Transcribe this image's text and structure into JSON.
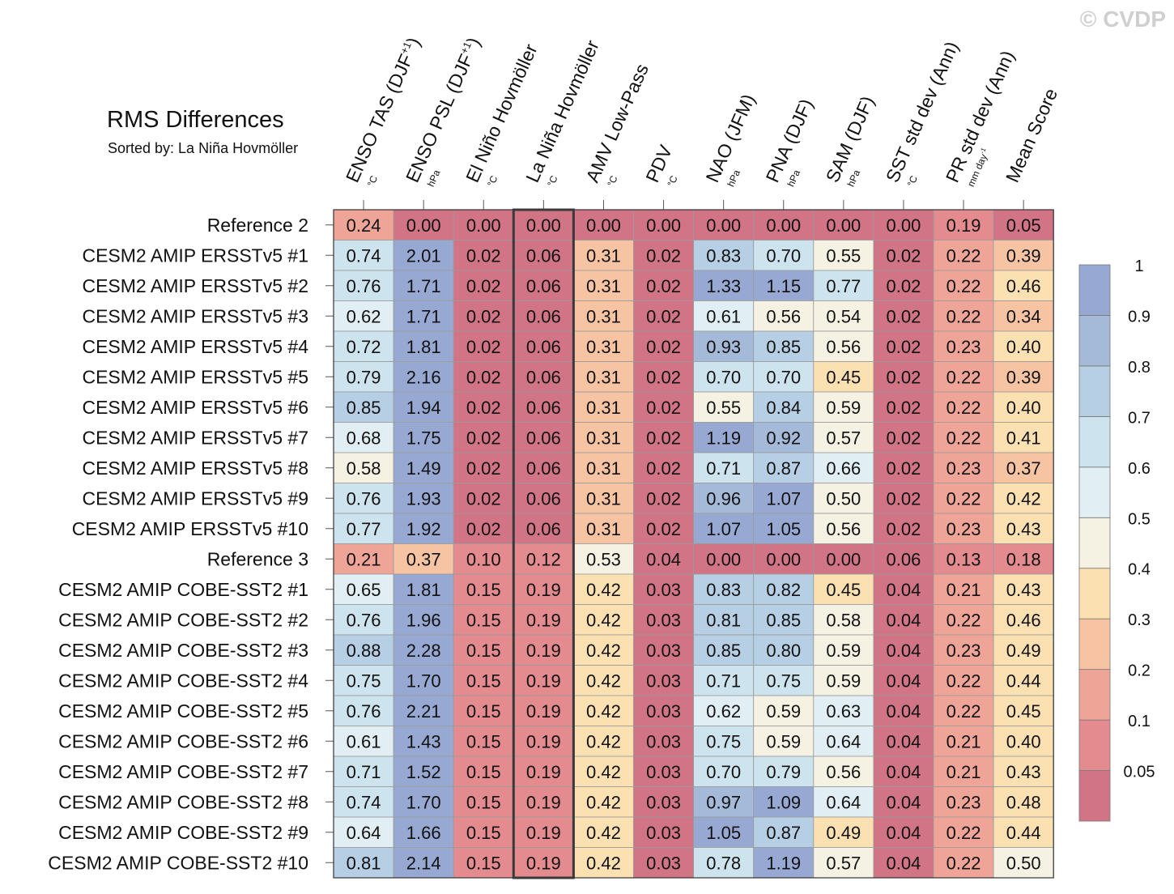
{
  "watermark": "© CVDP",
  "chart_data": {
    "type": "heatmap",
    "title": "RMS Differences",
    "subtitle": "Sorted by: La Niña Hovmöller",
    "sorted_column": "La Niña Hovmöller",
    "columns": [
      {
        "label": "ENSO TAS (DJF",
        "sup": "+1",
        "label_end": ")",
        "unit": "°C"
      },
      {
        "label": "ENSO PSL (DJF",
        "sup": "+1",
        "label_end": ")",
        "unit": "hPa"
      },
      {
        "label": "El Niño Hovmöller",
        "unit": "°C"
      },
      {
        "label": "La Niña Hovmöller",
        "unit": "°C"
      },
      {
        "label": "AMV Low-Pass",
        "unit": "°C"
      },
      {
        "label": "PDV",
        "unit": "°C"
      },
      {
        "label": "NAO (JFM)",
        "unit": "hPa"
      },
      {
        "label": "PNA (DJF)",
        "unit": "hPa"
      },
      {
        "label": "SAM (DJF)",
        "unit": "hPa"
      },
      {
        "label": "SST std dev (Ann)",
        "unit": "°C"
      },
      {
        "label": "PR std dev (Ann)",
        "unit": "mm day",
        "unit_sup": "-1"
      },
      {
        "label": "Mean Score",
        "unit": ""
      }
    ],
    "rows": [
      "Reference 2",
      "CESM2 AMIP ERSSTv5 #1",
      "CESM2 AMIP ERSSTv5 #2",
      "CESM2 AMIP ERSSTv5 #3",
      "CESM2 AMIP ERSSTv5 #4",
      "CESM2 AMIP ERSSTv5 #5",
      "CESM2 AMIP ERSSTv5 #6",
      "CESM2 AMIP ERSSTv5 #7",
      "CESM2 AMIP ERSSTv5 #8",
      "CESM2 AMIP ERSSTv5 #9",
      "CESM2 AMIP ERSSTv5 #10",
      "Reference 3",
      "CESM2 AMIP COBE-SST2 #1",
      "CESM2 AMIP COBE-SST2 #2",
      "CESM2 AMIP COBE-SST2 #3",
      "CESM2 AMIP COBE-SST2 #4",
      "CESM2 AMIP COBE-SST2 #5",
      "CESM2 AMIP COBE-SST2 #6",
      "CESM2 AMIP COBE-SST2 #7",
      "CESM2 AMIP COBE-SST2 #8",
      "CESM2 AMIP COBE-SST2 #9",
      "CESM2 AMIP COBE-SST2 #10"
    ],
    "values": [
      [
        "0.24",
        "0.00",
        "0.00",
        "0.00",
        "0.00",
        "0.00",
        "0.00",
        "0.00",
        "0.00",
        "0.00",
        "0.19",
        "0.05"
      ],
      [
        "0.74",
        "2.01",
        "0.02",
        "0.06",
        "0.31",
        "0.02",
        "0.83",
        "0.70",
        "0.55",
        "0.02",
        "0.22",
        "0.39"
      ],
      [
        "0.76",
        "1.71",
        "0.02",
        "0.06",
        "0.31",
        "0.02",
        "1.33",
        "1.15",
        "0.77",
        "0.02",
        "0.22",
        "0.46"
      ],
      [
        "0.62",
        "1.71",
        "0.02",
        "0.06",
        "0.31",
        "0.02",
        "0.61",
        "0.56",
        "0.54",
        "0.02",
        "0.22",
        "0.34"
      ],
      [
        "0.72",
        "1.81",
        "0.02",
        "0.06",
        "0.31",
        "0.02",
        "0.93",
        "0.85",
        "0.56",
        "0.02",
        "0.23",
        "0.40"
      ],
      [
        "0.79",
        "2.16",
        "0.02",
        "0.06",
        "0.31",
        "0.02",
        "0.70",
        "0.70",
        "0.45",
        "0.02",
        "0.22",
        "0.39"
      ],
      [
        "0.85",
        "1.94",
        "0.02",
        "0.06",
        "0.31",
        "0.02",
        "0.55",
        "0.84",
        "0.59",
        "0.02",
        "0.22",
        "0.40"
      ],
      [
        "0.68",
        "1.75",
        "0.02",
        "0.06",
        "0.31",
        "0.02",
        "1.19",
        "0.92",
        "0.57",
        "0.02",
        "0.22",
        "0.41"
      ],
      [
        "0.58",
        "1.49",
        "0.02",
        "0.06",
        "0.31",
        "0.02",
        "0.71",
        "0.87",
        "0.66",
        "0.02",
        "0.23",
        "0.37"
      ],
      [
        "0.76",
        "1.93",
        "0.02",
        "0.06",
        "0.31",
        "0.02",
        "0.96",
        "1.07",
        "0.50",
        "0.02",
        "0.22",
        "0.42"
      ],
      [
        "0.77",
        "1.92",
        "0.02",
        "0.06",
        "0.31",
        "0.02",
        "1.07",
        "1.05",
        "0.56",
        "0.02",
        "0.23",
        "0.43"
      ],
      [
        "0.21",
        "0.37",
        "0.10",
        "0.12",
        "0.53",
        "0.04",
        "0.00",
        "0.00",
        "0.00",
        "0.06",
        "0.13",
        "0.18"
      ],
      [
        "0.65",
        "1.81",
        "0.15",
        "0.19",
        "0.42",
        "0.03",
        "0.83",
        "0.82",
        "0.45",
        "0.04",
        "0.21",
        "0.43"
      ],
      [
        "0.76",
        "1.96",
        "0.15",
        "0.19",
        "0.42",
        "0.03",
        "0.81",
        "0.85",
        "0.58",
        "0.04",
        "0.22",
        "0.46"
      ],
      [
        "0.88",
        "2.28",
        "0.15",
        "0.19",
        "0.42",
        "0.03",
        "0.85",
        "0.80",
        "0.59",
        "0.04",
        "0.23",
        "0.49"
      ],
      [
        "0.75",
        "1.70",
        "0.15",
        "0.19",
        "0.42",
        "0.03",
        "0.71",
        "0.75",
        "0.59",
        "0.04",
        "0.22",
        "0.44"
      ],
      [
        "0.76",
        "2.21",
        "0.15",
        "0.19",
        "0.42",
        "0.03",
        "0.62",
        "0.59",
        "0.63",
        "0.04",
        "0.22",
        "0.45"
      ],
      [
        "0.61",
        "1.43",
        "0.15",
        "0.19",
        "0.42",
        "0.03",
        "0.75",
        "0.59",
        "0.64",
        "0.04",
        "0.21",
        "0.40"
      ],
      [
        "0.71",
        "1.52",
        "0.15",
        "0.19",
        "0.42",
        "0.03",
        "0.70",
        "0.79",
        "0.56",
        "0.04",
        "0.21",
        "0.43"
      ],
      [
        "0.74",
        "1.70",
        "0.15",
        "0.19",
        "0.42",
        "0.03",
        "0.97",
        "1.09",
        "0.64",
        "0.04",
        "0.23",
        "0.48"
      ],
      [
        "0.64",
        "1.66",
        "0.15",
        "0.19",
        "0.42",
        "0.03",
        "1.05",
        "0.87",
        "0.49",
        "0.04",
        "0.22",
        "0.44"
      ],
      [
        "0.81",
        "2.14",
        "0.15",
        "0.19",
        "0.42",
        "0.03",
        "0.78",
        "1.19",
        "0.57",
        "0.04",
        "0.22",
        "0.50"
      ]
    ],
    "colorbar": {
      "levels": [
        "0.05",
        "0.1",
        "0.2",
        "0.3",
        "0.4",
        "0.5",
        "0.6",
        "0.7",
        "0.8",
        "0.9",
        "1"
      ],
      "colors": [
        "#d17485",
        "#e38b8f",
        "#efa498",
        "#f6c4a2",
        "#fbe0b2",
        "#f5f1e3",
        "#e1eef3",
        "#cde3ee",
        "#b6cfe5",
        "#a5bad9",
        "#97a9d3"
      ]
    }
  }
}
